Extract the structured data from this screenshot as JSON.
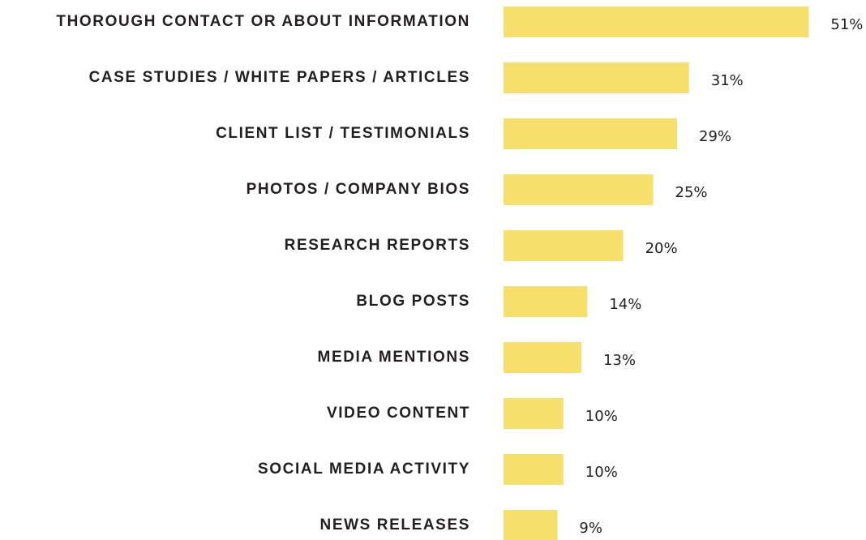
{
  "chart_data": {
    "type": "bar",
    "orientation": "horizontal",
    "categories": [
      "THOROUGH CONTACT OR ABOUT INFORMATION",
      "CASE STUDIES / WHITE PAPERS / ARTICLES",
      "CLIENT LIST / TESTIMONIALS",
      "PHOTOS / COMPANY BIOS",
      "RESEARCH REPORTS",
      "BLOG POSTS",
      "MEDIA MENTIONS",
      "VIDEO CONTENT",
      "SOCIAL MEDIA ACTIVITY",
      "NEWS RELEASES"
    ],
    "values": [
      51,
      31,
      29,
      25,
      20,
      14,
      13,
      10,
      10,
      9
    ],
    "value_labels": [
      "51%",
      "31%",
      "29%",
      "25%",
      "20%",
      "14%",
      "13%",
      "10%",
      "10%",
      "9%"
    ],
    "color": "#f6e06b"
  }
}
